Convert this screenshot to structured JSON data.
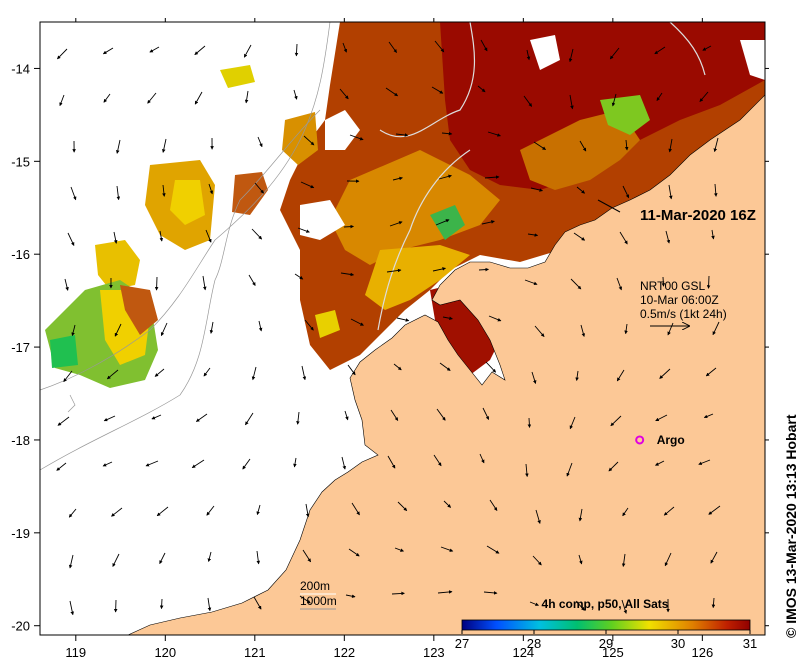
{
  "chart_data": {
    "type": "heatmap",
    "title": "",
    "xlabel": "",
    "ylabel": "",
    "xlim": [
      118.6,
      126.7
    ],
    "ylim": [
      -20.1,
      -13.5
    ],
    "x_ticks": [
      {
        "value": 119,
        "label": "119"
      },
      {
        "value": 120,
        "label": "120"
      },
      {
        "value": 121,
        "label": "121"
      },
      {
        "value": 122,
        "label": "122"
      },
      {
        "value": 123,
        "label": "123"
      },
      {
        "value": 124,
        "label": "124"
      },
      {
        "value": 125,
        "label": "125"
      },
      {
        "value": 126,
        "label": "126"
      }
    ],
    "y_ticks": [
      {
        "value": -14,
        "label": "-14"
      },
      {
        "value": -15,
        "label": "-15"
      },
      {
        "value": -16,
        "label": "-16"
      },
      {
        "value": -17,
        "label": "-17"
      },
      {
        "value": -18,
        "label": "-18"
      },
      {
        "value": -19,
        "label": "-19"
      },
      {
        "value": -20,
        "label": "-20"
      }
    ],
    "colorbar": {
      "title": "4h comp, p50, All Sats",
      "min": 27,
      "max": 31,
      "ticks": [
        {
          "value": 27,
          "label": "27"
        },
        {
          "value": 28,
          "label": "28"
        },
        {
          "value": 29,
          "label": "29"
        },
        {
          "value": 30,
          "label": "30"
        },
        {
          "value": 31,
          "label": "31"
        }
      ]
    },
    "scene_time": "11-Mar-2020 16Z",
    "current_legend": {
      "line1": "NRT00 GSL",
      "line2": "10-Mar 06:00Z",
      "line3": "0.5m/s (1kt 24h)"
    },
    "argo": {
      "label": "Argo",
      "lon": 125.3,
      "lat": -18.0
    },
    "bathymetry_legend": {
      "line1": "200m",
      "line2": "1000m"
    },
    "credit": "© IMOS 13-Mar-2020 13:13 Hobart",
    "colors": {
      "land": "#fcc896",
      "sst_cold": "#00008b",
      "sst_mid": "#00c864",
      "sst_warm": "#f0d000",
      "sst_hot": "#a00000",
      "argo": "#e000e0"
    }
  }
}
